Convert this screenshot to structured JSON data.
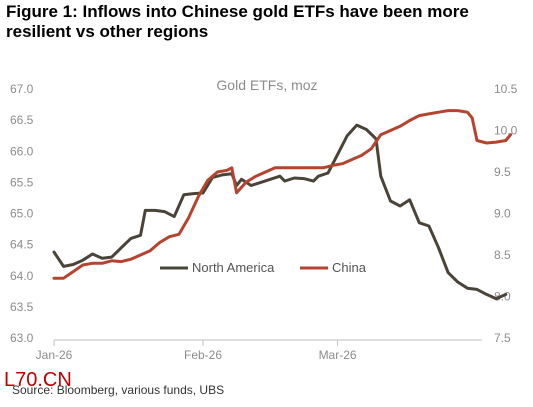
{
  "figure": {
    "title_line1": "Figure 1: Inflows into Chinese gold ETFs have been more",
    "title_line2": "resilient vs other regions",
    "source": "Source: Bloomberg, various funds, UBS",
    "watermark": "L70.CN"
  },
  "chart_data": {
    "type": "line",
    "title": "Gold ETFs, moz",
    "x_ticks": [
      "Jan-26",
      "Feb-26",
      "Mar-26"
    ],
    "left_axis": {
      "ylim": [
        63.0,
        67.0
      ],
      "ticks": [
        "63.0",
        "63.5",
        "64.0",
        "64.5",
        "65.0",
        "65.5",
        "66.0",
        "66.5",
        "67.0"
      ]
    },
    "right_axis": {
      "ylim": [
        7.5,
        10.5
      ],
      "ticks": [
        "7.5",
        "8.0",
        "8.5",
        "9.0",
        "9.5",
        "10.0",
        "10.5"
      ]
    },
    "grid": false,
    "legend_position": "lower-middle",
    "series": [
      {
        "name": "North America",
        "axis": "left",
        "color": "#4a4438",
        "points": [
          [
            "2026-01-01",
            64.38
          ],
          [
            "2026-01-03",
            64.15
          ],
          [
            "2026-01-05",
            64.18
          ],
          [
            "2026-01-07",
            64.25
          ],
          [
            "2026-01-09",
            64.35
          ],
          [
            "2026-01-11",
            64.28
          ],
          [
            "2026-01-13",
            64.3
          ],
          [
            "2026-01-15",
            64.45
          ],
          [
            "2026-01-17",
            64.6
          ],
          [
            "2026-01-19",
            64.65
          ],
          [
            "2026-01-20",
            65.05
          ],
          [
            "2026-01-22",
            65.05
          ],
          [
            "2026-01-24",
            65.03
          ],
          [
            "2026-01-26",
            64.95
          ],
          [
            "2026-01-28",
            65.3
          ],
          [
            "2026-01-30",
            65.32
          ],
          [
            "2026-02-01",
            65.33
          ],
          [
            "2026-02-03",
            65.58
          ],
          [
            "2026-02-05",
            65.62
          ],
          [
            "2026-02-07",
            65.64
          ],
          [
            "2026-02-08",
            65.45
          ],
          [
            "2026-02-09",
            65.55
          ],
          [
            "2026-02-11",
            65.45
          ],
          [
            "2026-02-13",
            65.5
          ],
          [
            "2026-02-15",
            65.55
          ],
          [
            "2026-02-17",
            65.6
          ],
          [
            "2026-02-18",
            65.52
          ],
          [
            "2026-02-20",
            65.57
          ],
          [
            "2026-02-22",
            65.56
          ],
          [
            "2026-02-24",
            65.52
          ],
          [
            "2026-02-25",
            65.6
          ],
          [
            "2026-02-27",
            65.65
          ],
          [
            "2026-03-01",
            65.95
          ],
          [
            "2026-03-03",
            66.25
          ],
          [
            "2026-03-05",
            66.42
          ],
          [
            "2026-03-07",
            66.35
          ],
          [
            "2026-03-09",
            66.2
          ],
          [
            "2026-03-10",
            65.6
          ],
          [
            "2026-03-12",
            65.2
          ],
          [
            "2026-03-14",
            65.12
          ],
          [
            "2026-03-16",
            65.22
          ],
          [
            "2026-03-18",
            64.85
          ],
          [
            "2026-03-20",
            64.8
          ],
          [
            "2026-03-22",
            64.45
          ],
          [
            "2026-03-24",
            64.05
          ],
          [
            "2026-03-26",
            63.9
          ],
          [
            "2026-03-28",
            63.8
          ],
          [
            "2026-03-30",
            63.78
          ],
          [
            "2026-04-01",
            63.7
          ],
          [
            "2026-04-03",
            63.63
          ],
          [
            "2026-04-05",
            63.7
          ]
        ]
      },
      {
        "name": "China",
        "axis": "right",
        "color": "#b5432e",
        "points": [
          [
            "2026-01-01",
            8.22
          ],
          [
            "2026-01-03",
            8.22
          ],
          [
            "2026-01-05",
            8.3
          ],
          [
            "2026-01-07",
            8.38
          ],
          [
            "2026-01-09",
            8.4
          ],
          [
            "2026-01-11",
            8.4
          ],
          [
            "2026-01-13",
            8.43
          ],
          [
            "2026-01-15",
            8.42
          ],
          [
            "2026-01-17",
            8.45
          ],
          [
            "2026-01-19",
            8.5
          ],
          [
            "2026-01-21",
            8.55
          ],
          [
            "2026-01-23",
            8.65
          ],
          [
            "2026-01-25",
            8.72
          ],
          [
            "2026-01-27",
            8.75
          ],
          [
            "2026-01-29",
            8.95
          ],
          [
            "2026-01-31",
            9.2
          ],
          [
            "2026-02-02",
            9.4
          ],
          [
            "2026-02-04",
            9.5
          ],
          [
            "2026-02-06",
            9.52
          ],
          [
            "2026-02-07",
            9.55
          ],
          [
            "2026-02-08",
            9.25
          ],
          [
            "2026-02-10",
            9.38
          ],
          [
            "2026-02-12",
            9.45
          ],
          [
            "2026-02-14",
            9.5
          ],
          [
            "2026-02-16",
            9.55
          ],
          [
            "2026-02-18",
            9.55
          ],
          [
            "2026-02-20",
            9.55
          ],
          [
            "2026-02-22",
            9.55
          ],
          [
            "2026-02-24",
            9.55
          ],
          [
            "2026-02-26",
            9.55
          ],
          [
            "2026-02-28",
            9.58
          ],
          [
            "2026-03-02",
            9.6
          ],
          [
            "2026-03-04",
            9.65
          ],
          [
            "2026-03-06",
            9.7
          ],
          [
            "2026-03-08",
            9.78
          ],
          [
            "2026-03-10",
            9.95
          ],
          [
            "2026-03-12",
            10.0
          ],
          [
            "2026-03-14",
            10.05
          ],
          [
            "2026-03-16",
            10.12
          ],
          [
            "2026-03-18",
            10.18
          ],
          [
            "2026-03-20",
            10.2
          ],
          [
            "2026-03-22",
            10.22
          ],
          [
            "2026-03-24",
            10.24
          ],
          [
            "2026-03-26",
            10.24
          ],
          [
            "2026-03-28",
            10.22
          ],
          [
            "2026-03-29",
            10.15
          ],
          [
            "2026-03-30",
            9.88
          ],
          [
            "2026-04-01",
            9.85
          ],
          [
            "2026-04-03",
            9.86
          ],
          [
            "2026-04-05",
            9.88
          ],
          [
            "2026-04-06",
            9.95
          ]
        ]
      }
    ]
  }
}
